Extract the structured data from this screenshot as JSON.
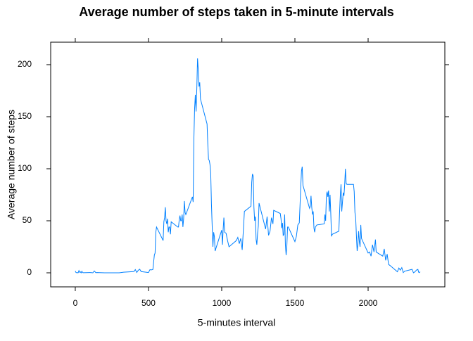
{
  "chart_data": {
    "type": "line",
    "title": "Average number of steps taken in 5-minute intervals",
    "x_label": "5-minutes interval",
    "y_label": "Average number of steps",
    "x": [
      0,
      5,
      10,
      15,
      20,
      25,
      30,
      35,
      40,
      45,
      50,
      55,
      100,
      110,
      120,
      130,
      140,
      150,
      200,
      230,
      300,
      330,
      400,
      410,
      420,
      430,
      440,
      450,
      500,
      510,
      520,
      530,
      540,
      545,
      550,
      555,
      600,
      605,
      610,
      615,
      620,
      625,
      630,
      635,
      640,
      645,
      650,
      655,
      700,
      705,
      710,
      715,
      720,
      725,
      730,
      735,
      740,
      745,
      750,
      755,
      800,
      805,
      810,
      815,
      820,
      825,
      830,
      835,
      840,
      845,
      850,
      855,
      900,
      905,
      910,
      915,
      920,
      925,
      930,
      935,
      940,
      945,
      950,
      955,
      1000,
      1005,
      1010,
      1015,
      1020,
      1030,
      1040,
      1050,
      1100,
      1110,
      1120,
      1130,
      1140,
      1150,
      1155,
      1200,
      1205,
      1210,
      1215,
      1220,
      1225,
      1230,
      1235,
      1240,
      1245,
      1250,
      1255,
      1300,
      1310,
      1320,
      1330,
      1340,
      1350,
      1355,
      1400,
      1405,
      1410,
      1415,
      1420,
      1425,
      1430,
      1435,
      1440,
      1445,
      1450,
      1455,
      1500,
      1510,
      1520,
      1530,
      1535,
      1540,
      1545,
      1550,
      1555,
      1600,
      1605,
      1610,
      1615,
      1620,
      1625,
      1630,
      1635,
      1640,
      1650,
      1700,
      1705,
      1710,
      1715,
      1720,
      1725,
      1730,
      1735,
      1740,
      1745,
      1750,
      1755,
      1800,
      1805,
      1810,
      1815,
      1820,
      1825,
      1830,
      1835,
      1840,
      1845,
      1850,
      1855,
      1900,
      1905,
      1910,
      1915,
      1920,
      1925,
      1930,
      1935,
      1940,
      1945,
      1950,
      1955,
      2000,
      2010,
      2020,
      2030,
      2040,
      2050,
      2055,
      2100,
      2110,
      2120,
      2130,
      2140,
      2150,
      2200,
      2210,
      2220,
      2230,
      2240,
      2250,
      2300,
      2310,
      2320,
      2330,
      2340,
      2345,
      2350,
      2355
    ],
    "series": [
      {
        "color": "#0080ff",
        "values": [
          1.7,
          0.3,
          0.1,
          0.2,
          0.1,
          2.1,
          0.5,
          0.9,
          0,
          1.5,
          0.3,
          0.1,
          0.3,
          0.2,
          0,
          1.8,
          0.2,
          0.3,
          0,
          0,
          0,
          0.6,
          1.2,
          3.1,
          0.3,
          2.4,
          3.5,
          1.2,
          0.3,
          3,
          2.8,
          3.2,
          17,
          19,
          39,
          44,
          31,
          49,
          53,
          63,
          50,
          47,
          52,
          39,
          44,
          44,
          37,
          49,
          44,
          44,
          51,
          55,
          50,
          50,
          56,
          44,
          52,
          69,
          58,
          56,
          73,
          68,
          129,
          158,
          171,
          155,
          177,
          206,
          195,
          179,
          183,
          167,
          143,
          124,
          109,
          108,
          104,
          96,
          66,
          45,
          25,
          39,
          35,
          21,
          41,
          27,
          42,
          53,
          39,
          38,
          31,
          25,
          31,
          34,
          28,
          33,
          22,
          46,
          59,
          64,
          87,
          95,
          93,
          63,
          50,
          54,
          32,
          27,
          38,
          45,
          67,
          42,
          54,
          36,
          40,
          53,
          47,
          60,
          57,
          52,
          43,
          48,
          36,
          37,
          56,
          27,
          17,
          26,
          44,
          44,
          30,
          35,
          46,
          48,
          65,
          83,
          98,
          102,
          84,
          62,
          64,
          74,
          63,
          56,
          59,
          43,
          39,
          44,
          46,
          47,
          56,
          50,
          74,
          78,
          73,
          79,
          59,
          75,
          57,
          35,
          37,
          40,
          58,
          74,
          85,
          59,
          68,
          77,
          74,
          85,
          100,
          86,
          85,
          85,
          78,
          58,
          53,
          36,
          21,
          27,
          40,
          30,
          25,
          46,
          33,
          19,
          20,
          16,
          27,
          20,
          32,
          20,
          16,
          23,
          12,
          18,
          8,
          7,
          1,
          4.6,
          2.6,
          5,
          0.2,
          1.6,
          3.3,
          0,
          1,
          2.6,
          3.3,
          0.6,
          0.2,
          1.1
        ]
      }
    ],
    "xlim": [
      -168,
      2524
    ],
    "ylim": [
      -13.5,
      221.6
    ],
    "xticks": [
      0,
      500,
      1000,
      1500,
      2000
    ],
    "yticks": [
      0,
      50,
      100,
      150,
      200
    ]
  }
}
